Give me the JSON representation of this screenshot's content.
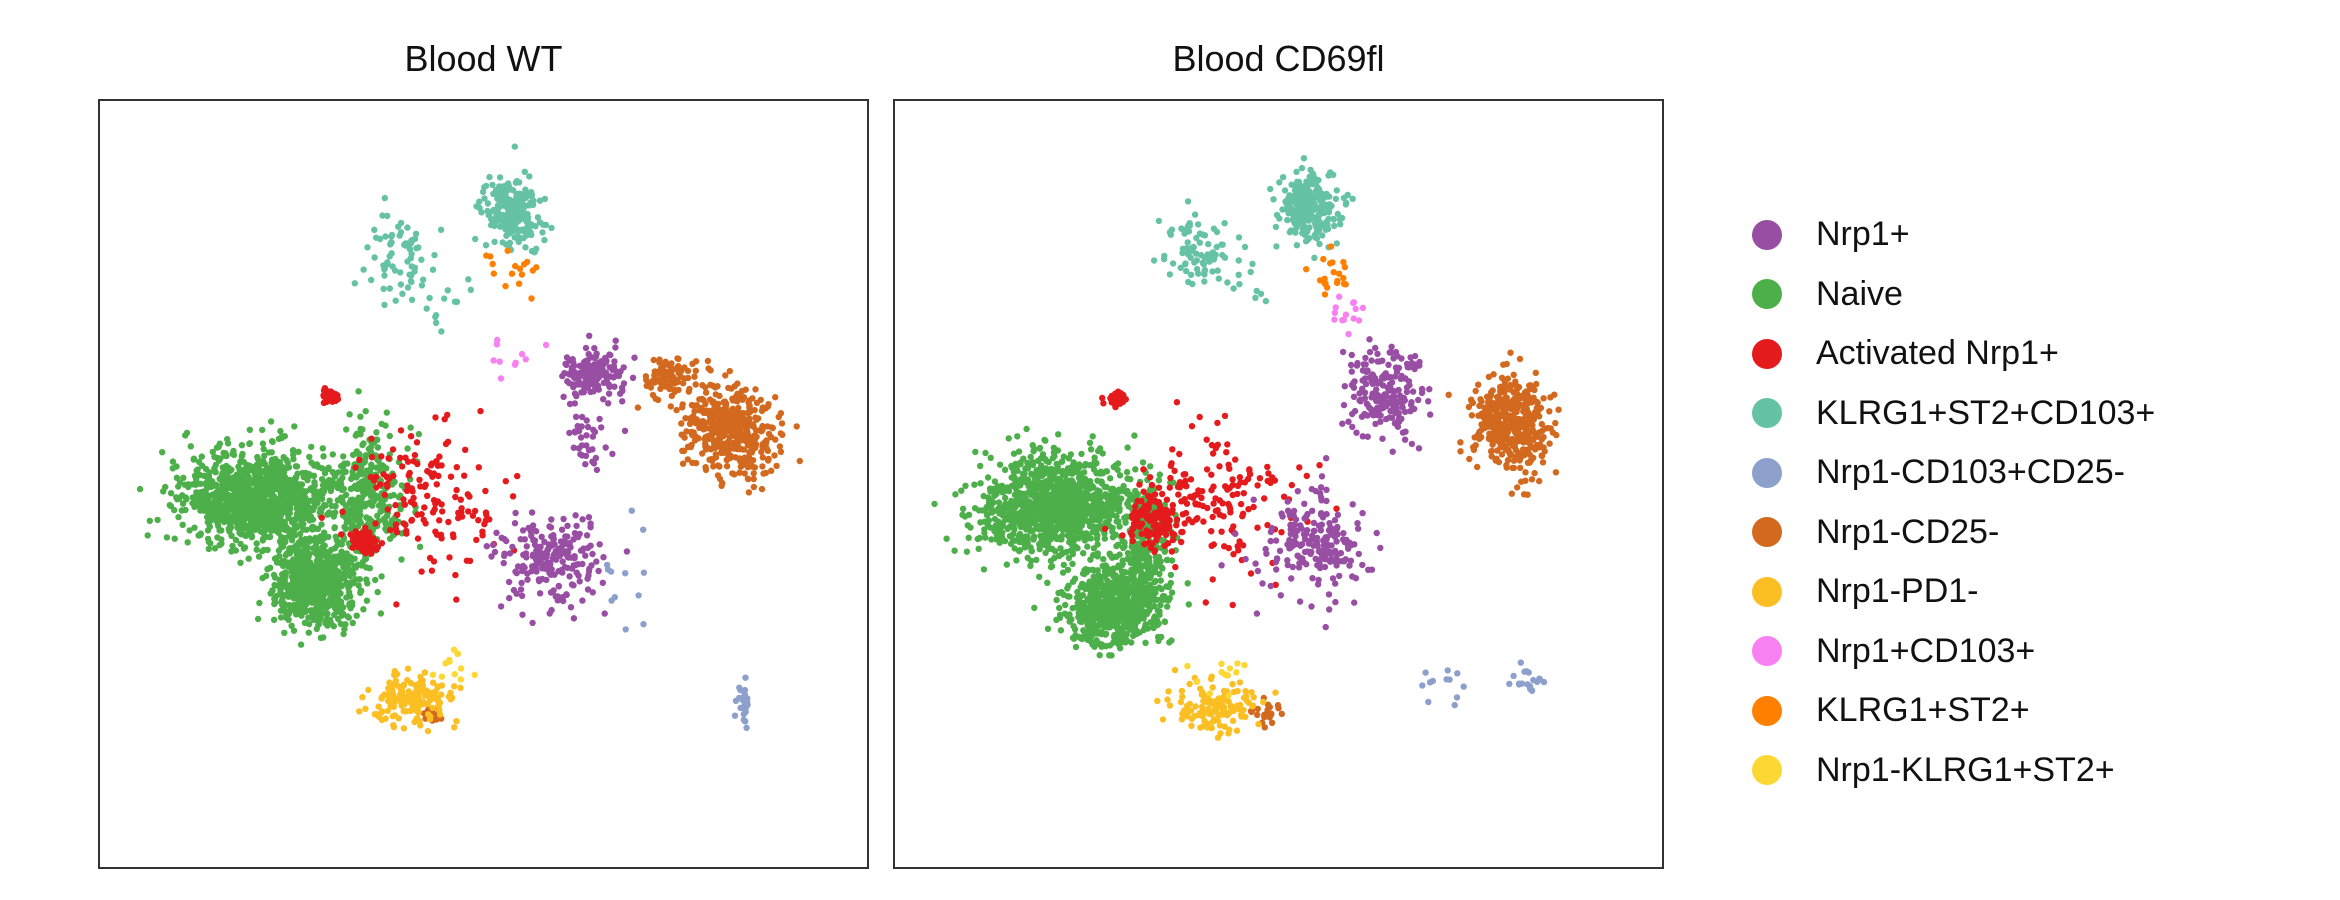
{
  "chart_data": {
    "type": "scatter",
    "panels": [
      {
        "title": "Blood WT",
        "clusters": [
          {
            "group": "Naive",
            "n": 1100,
            "cx": 2.1,
            "cy": 5.2,
            "sx": 0.9,
            "sy": 0.55
          },
          {
            "group": "Naive",
            "n": 700,
            "cx": 2.8,
            "cy": 6.3,
            "sx": 0.5,
            "sy": 0.5
          },
          {
            "group": "Naive",
            "n": 300,
            "cx": 3.5,
            "cy": 5.2,
            "sx": 0.4,
            "sy": 0.8
          },
          {
            "group": "Activated Nrp1+",
            "n": 120,
            "cx": 3.45,
            "cy": 5.75,
            "sx": 0.12,
            "sy": 0.12
          },
          {
            "group": "Activated Nrp1+",
            "n": 35,
            "cx": 3.0,
            "cy": 3.85,
            "sx": 0.1,
            "sy": 0.1
          },
          {
            "group": "Activated Nrp1+",
            "n": 150,
            "cx": 4.2,
            "cy": 5.2,
            "sx": 0.9,
            "sy": 0.8
          },
          {
            "group": "Nrp1+",
            "n": 220,
            "cx": 5.9,
            "cy": 6.0,
            "sx": 0.6,
            "sy": 0.55
          },
          {
            "group": "Nrp1+",
            "n": 160,
            "cx": 6.45,
            "cy": 3.55,
            "sx": 0.35,
            "sy": 0.3
          },
          {
            "group": "Nrp1+",
            "n": 35,
            "cx": 6.4,
            "cy": 4.4,
            "sx": 0.3,
            "sy": 0.4
          },
          {
            "group": "Nrp1-CD25-",
            "n": 420,
            "cx": 8.2,
            "cy": 4.3,
            "sx": 0.55,
            "sy": 0.5
          },
          {
            "group": "Nrp1-CD25-",
            "n": 90,
            "cx": 7.4,
            "cy": 3.6,
            "sx": 0.35,
            "sy": 0.25
          },
          {
            "group": "Nrp1-CD25-",
            "n": 20,
            "cx": 4.35,
            "cy": 8.0,
            "sx": 0.12,
            "sy": 0.1
          },
          {
            "group": "KLRG1+ST2+CD103+",
            "n": 230,
            "cx": 5.4,
            "cy": 1.45,
            "sx": 0.35,
            "sy": 0.4
          },
          {
            "group": "KLRG1+ST2+CD103+",
            "n": 70,
            "cx": 3.9,
            "cy": 2.05,
            "sx": 0.4,
            "sy": 0.45
          },
          {
            "group": "KLRG1+ST2+CD103+",
            "n": 12,
            "cx": 4.6,
            "cy": 2.6,
            "sx": 0.4,
            "sy": 0.35
          },
          {
            "group": "Nrp1-PD1-",
            "n": 160,
            "cx": 4.1,
            "cy": 7.8,
            "sx": 0.55,
            "sy": 0.3
          },
          {
            "group": "Nrp1-CD103+CD25-",
            "n": 25,
            "cx": 8.4,
            "cy": 7.8,
            "sx": 0.1,
            "sy": 0.3
          },
          {
            "group": "Nrp1-CD103+CD25-",
            "n": 12,
            "cx": 6.9,
            "cy": 6.0,
            "sx": 0.5,
            "sy": 0.6
          },
          {
            "group": "Nrp1+CD103+",
            "n": 10,
            "cx": 5.35,
            "cy": 3.4,
            "sx": 0.4,
            "sy": 0.45
          },
          {
            "group": "KLRG1+ST2+",
            "n": 16,
            "cx": 5.45,
            "cy": 2.2,
            "sx": 0.35,
            "sy": 0.35
          },
          {
            "group": "Nrp1-KLRG1+ST2+",
            "n": 12,
            "cx": 4.6,
            "cy": 7.4,
            "sx": 0.3,
            "sy": 0.25
          }
        ]
      },
      {
        "title": "Blood CD69fl",
        "clusters": [
          {
            "group": "Naive",
            "n": 1100,
            "cx": 2.1,
            "cy": 5.3,
            "sx": 0.85,
            "sy": 0.6
          },
          {
            "group": "Naive",
            "n": 650,
            "cx": 2.85,
            "cy": 6.6,
            "sx": 0.55,
            "sy": 0.45
          },
          {
            "group": "Naive",
            "n": 250,
            "cx": 3.25,
            "cy": 5.8,
            "sx": 0.3,
            "sy": 0.8
          },
          {
            "group": "Activated Nrp1+",
            "n": 120,
            "cx": 3.35,
            "cy": 5.5,
            "sx": 0.3,
            "sy": 0.35
          },
          {
            "group": "Activated Nrp1+",
            "n": 35,
            "cx": 2.9,
            "cy": 3.9,
            "sx": 0.1,
            "sy": 0.1
          },
          {
            "group": "Activated Nrp1+",
            "n": 150,
            "cx": 4.2,
            "cy": 5.2,
            "sx": 0.9,
            "sy": 0.8
          },
          {
            "group": "Nrp1+",
            "n": 200,
            "cx": 6.4,
            "cy": 3.8,
            "sx": 0.45,
            "sy": 0.5
          },
          {
            "group": "Nrp1+",
            "n": 200,
            "cx": 5.5,
            "cy": 5.8,
            "sx": 0.6,
            "sy": 0.6
          },
          {
            "group": "Nrp1-CD25-",
            "n": 420,
            "cx": 8.05,
            "cy": 4.2,
            "sx": 0.45,
            "sy": 0.55
          },
          {
            "group": "Nrp1-CD25-",
            "n": 25,
            "cx": 4.85,
            "cy": 8.0,
            "sx": 0.15,
            "sy": 0.15
          },
          {
            "group": "KLRG1+ST2+CD103+",
            "n": 260,
            "cx": 5.4,
            "cy": 1.4,
            "sx": 0.35,
            "sy": 0.4
          },
          {
            "group": "KLRG1+ST2+CD103+",
            "n": 80,
            "cx": 3.9,
            "cy": 2.0,
            "sx": 0.4,
            "sy": 0.4
          },
          {
            "group": "KLRG1+ST2+CD103+",
            "n": 12,
            "cx": 4.5,
            "cy": 2.4,
            "sx": 0.4,
            "sy": 0.4
          },
          {
            "group": "Nrp1-PD1-",
            "n": 140,
            "cx": 4.15,
            "cy": 7.9,
            "sx": 0.5,
            "sy": 0.3
          },
          {
            "group": "Nrp1-CD103+CD25-",
            "n": 20,
            "cx": 8.25,
            "cy": 7.6,
            "sx": 0.25,
            "sy": 0.25
          },
          {
            "group": "Nrp1-CD103+CD25-",
            "n": 12,
            "cx": 7.2,
            "cy": 7.6,
            "sx": 0.4,
            "sy": 0.3
          },
          {
            "group": "Nrp1+CD103+",
            "n": 14,
            "cx": 5.95,
            "cy": 2.8,
            "sx": 0.15,
            "sy": 0.3
          },
          {
            "group": "KLRG1+ST2+",
            "n": 20,
            "cx": 5.7,
            "cy": 2.2,
            "sx": 0.3,
            "sy": 0.3
          },
          {
            "group": "Nrp1-KLRG1+ST2+",
            "n": 12,
            "cx": 4.3,
            "cy": 7.5,
            "sx": 0.3,
            "sy": 0.25
          }
        ]
      }
    ],
    "legend": [
      {
        "label": "Nrp1+",
        "color": "#984ea3"
      },
      {
        "label": "Naive",
        "color": "#4daf4a"
      },
      {
        "label": "Activated Nrp1+",
        "color": "#e41a1c"
      },
      {
        "label": "KLRG1+ST2+CD103+",
        "color": "#66c2a5"
      },
      {
        "label": "Nrp1-CD103+CD25-",
        "color": "#8da0cb"
      },
      {
        "label": "Nrp1-CD25-",
        "color": "#d2691e"
      },
      {
        "label": "Nrp1-PD1-",
        "color": "#fbbf24"
      },
      {
        "label": "Nrp1+CD103+",
        "color": "#f781f0"
      },
      {
        "label": "KLRG1+ST2+",
        "color": "#ff7f00"
      },
      {
        "label": "Nrp1-KLRG1+ST2+",
        "color": "#fdd835"
      }
    ],
    "xlim": [
      0,
      10
    ],
    "ylim": [
      0,
      10
    ],
    "axes_ticks": false,
    "grid": false,
    "legend_position": "right"
  }
}
